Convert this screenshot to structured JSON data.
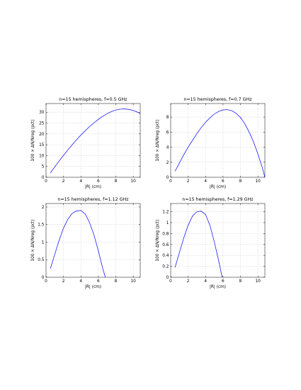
{
  "chart_data": [
    {
      "type": "line",
      "title": "n=15 hemispheres, f=0.5 GHz",
      "xlabel": "|R| (cm)",
      "ylabel": "100 × ΔN/Nreg (pct)",
      "xlim": [
        0,
        10.8
      ],
      "ylim": [
        0,
        34
      ],
      "xticks": [
        0,
        2,
        4,
        6,
        8,
        10
      ],
      "yticks": [
        0,
        5,
        10,
        15,
        20,
        25,
        30
      ],
      "grid": true,
      "color": "#0000ff",
      "series": [
        {
          "x": [
            0.5,
            1,
            1.5,
            2,
            2.5,
            3,
            3.5,
            4,
            4.5,
            5,
            5.5,
            6,
            6.5,
            7,
            7.5,
            8,
            8.5,
            9,
            9.5,
            10,
            10.5,
            10.8
          ],
          "y": [
            2,
            4.8,
            7.5,
            10.1,
            12.6,
            15,
            17.3,
            19.5,
            21.5,
            23.4,
            25.1,
            26.7,
            28.1,
            29.3,
            30.3,
            31,
            31.4,
            31.5,
            31.3,
            30.8,
            30,
            29.3
          ]
        }
      ]
    },
    {
      "type": "line",
      "title": "n=15 hemispheres, f=0.7 GHz",
      "xlabel": "|R| (cm)",
      "ylabel": "100 × ΔN/Nreg (pct)",
      "xlim": [
        0,
        10.8
      ],
      "ylim": [
        0,
        9.8
      ],
      "xticks": [
        0,
        2,
        4,
        6,
        8,
        10
      ],
      "yticks": [
        0,
        2,
        4,
        6,
        8
      ],
      "grid": true,
      "color": "#0000ff",
      "series": [
        {
          "x": [
            0.5,
            1,
            1.5,
            2,
            2.5,
            3,
            3.5,
            4,
            4.5,
            5,
            5.5,
            6,
            6.5,
            7,
            7.5,
            8,
            8.5,
            9,
            9.5,
            10,
            10.5,
            10.8
          ],
          "y": [
            0.8,
            1.9,
            3,
            4,
            4.9,
            5.8,
            6.6,
            7.3,
            7.9,
            8.4,
            8.75,
            8.95,
            8.98,
            8.85,
            8.5,
            7.95,
            7.1,
            6,
            4.7,
            3.1,
            1.3,
            0
          ]
        }
      ]
    },
    {
      "type": "line",
      "title": "n=15 hemispheres, f=1.12 GHz",
      "xlabel": "|R| (cm)",
      "ylabel": "100 × ΔN/Nreg (pct)",
      "xlim": [
        0,
        10.8
      ],
      "ylim": [
        0,
        2.1
      ],
      "xticks": [
        0,
        2,
        4,
        6,
        8,
        10
      ],
      "yticks": [
        0,
        0.5,
        1,
        1.5,
        2
      ],
      "yticklabels": [
        "0",
        "0.5",
        "1",
        "1.5",
        "2"
      ],
      "grid": true,
      "color": "#0000ff",
      "series": [
        {
          "x": [
            0.5,
            1,
            1.5,
            2,
            2.5,
            3,
            3.5,
            4,
            4.5,
            5,
            5.5,
            6,
            6.5,
            6.8
          ],
          "y": [
            0.25,
            0.65,
            1.05,
            1.4,
            1.65,
            1.82,
            1.89,
            1.9,
            1.8,
            1.55,
            1.2,
            0.75,
            0.25,
            0
          ]
        }
      ]
    },
    {
      "type": "line",
      "title": "n=15 hemispheres, f=1.29 GHz",
      "xlabel": "|R| (cm)",
      "ylabel": "100 × ΔN/Nreg (pct)",
      "xlim": [
        0,
        10.8
      ],
      "ylim": [
        0,
        1.35
      ],
      "xticks": [
        0,
        2,
        4,
        6,
        8,
        10
      ],
      "yticks": [
        0,
        0.2,
        0.4,
        0.6,
        0.8,
        1,
        1.2
      ],
      "yticklabels": [
        "0",
        "0.2",
        "0.4",
        "0.6",
        "0.8",
        "1",
        "1.2"
      ],
      "grid": true,
      "color": "#0000ff",
      "series": [
        {
          "x": [
            0.5,
            1,
            1.5,
            2,
            2.5,
            3,
            3.5,
            4,
            4.5,
            5,
            5.5,
            5.9
          ],
          "y": [
            0.18,
            0.45,
            0.72,
            0.95,
            1.12,
            1.2,
            1.21,
            1.15,
            0.95,
            0.65,
            0.3,
            0
          ]
        }
      ]
    }
  ]
}
